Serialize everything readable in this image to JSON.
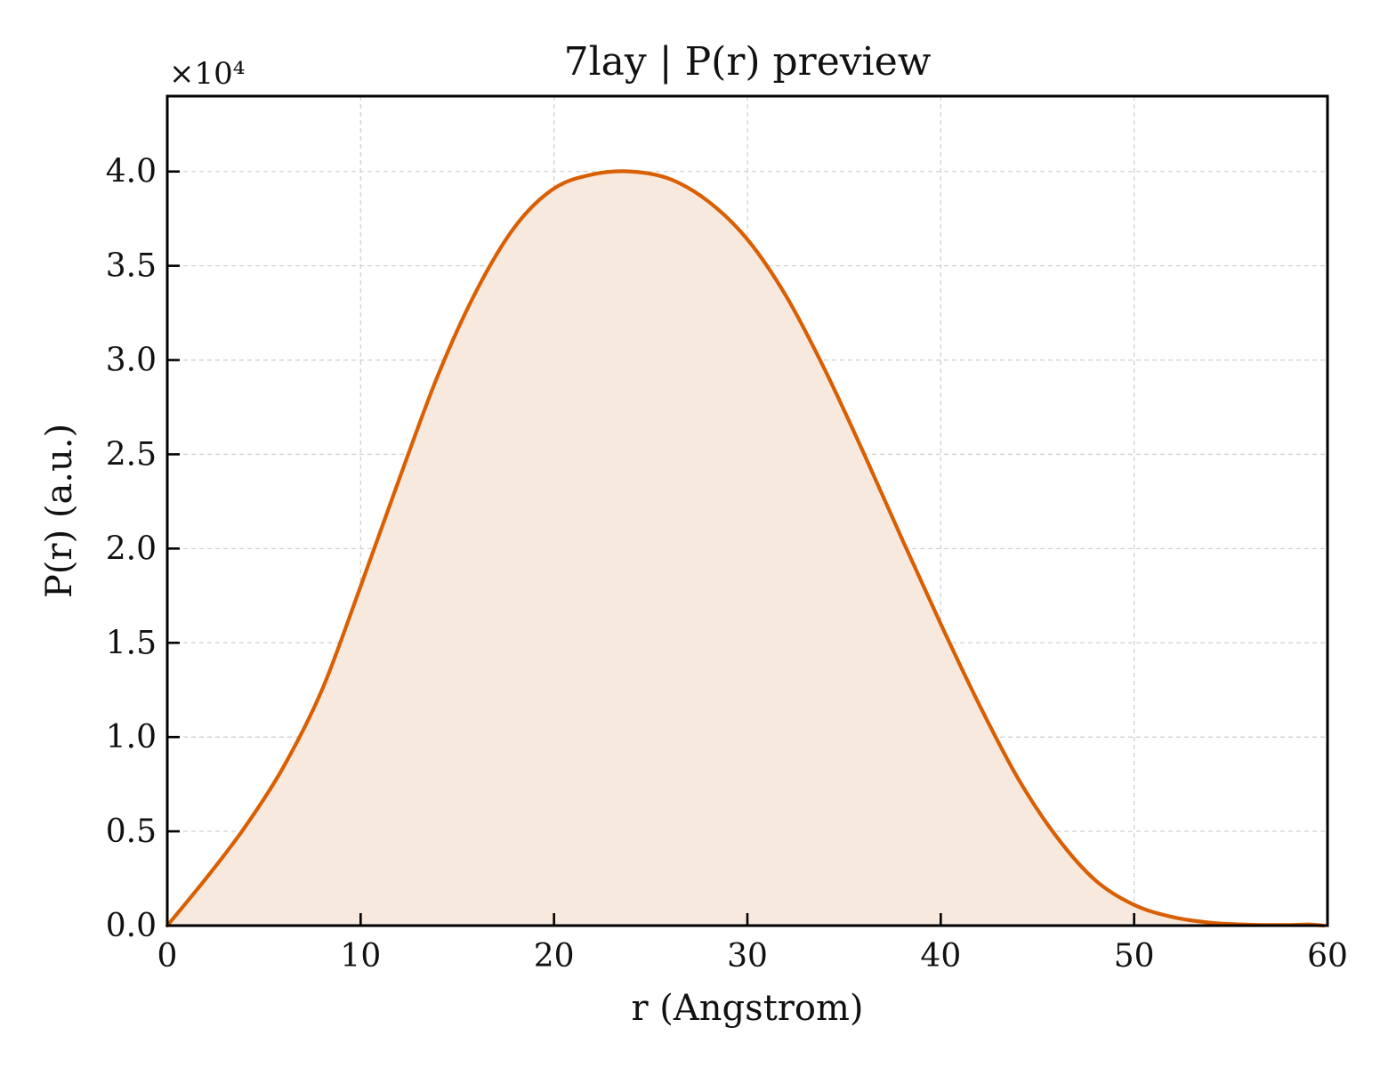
{
  "chart_data": {
    "type": "area",
    "title": "7lay | P(r) preview",
    "xlabel": "r (Angstrom)",
    "ylabel": "P(r) (a.u.)",
    "y_offset_label": "×10⁴",
    "xlim": [
      0,
      60
    ],
    "ylim": [
      0,
      4.4
    ],
    "y_scale_factor": 10000,
    "x_ticks": [
      0,
      10,
      20,
      30,
      40,
      50,
      60
    ],
    "x_tick_labels": [
      "0",
      "10",
      "20",
      "30",
      "40",
      "50",
      "60"
    ],
    "y_ticks": [
      0.0,
      0.5,
      1.0,
      1.5,
      2.0,
      2.5,
      3.0,
      3.5,
      4.0
    ],
    "y_tick_labels": [
      "0.0",
      "0.5",
      "1.0",
      "1.5",
      "2.0",
      "2.5",
      "3.0",
      "3.5",
      "4.0"
    ],
    "grid": true,
    "line_color": "#d95f02",
    "fill_color": "#f8e9df",
    "series": [
      {
        "x": [
          0,
          2,
          4,
          6,
          8,
          10,
          12,
          14,
          16,
          18,
          20,
          22,
          24,
          26,
          28,
          30,
          32,
          34,
          36,
          38,
          40,
          42,
          44,
          46,
          48,
          50,
          52,
          54,
          56,
          58,
          59,
          59.8
        ],
        "values": [
          0.0,
          0.25,
          0.52,
          0.84,
          1.25,
          1.8,
          2.37,
          2.92,
          3.37,
          3.71,
          3.91,
          3.985,
          4.0,
          3.96,
          3.84,
          3.64,
          3.34,
          2.95,
          2.51,
          2.05,
          1.6,
          1.17,
          0.78,
          0.47,
          0.24,
          0.11,
          0.045,
          0.015,
          0.005,
          0.003,
          0.006,
          0.0
        ]
      }
    ]
  }
}
